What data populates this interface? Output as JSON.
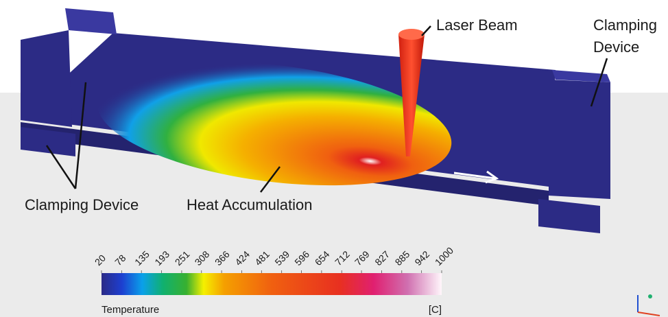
{
  "labels": {
    "laser_beam": "Laser Beam",
    "clamping_right_line1": "Clamping",
    "clamping_right_line2": "Device",
    "clamping_left": "Clamping Device",
    "heat_accumulation": "Heat Accumulation"
  },
  "legend": {
    "title": "Temperature",
    "unit": "[C]",
    "ticks": [
      20,
      78,
      135,
      193,
      251,
      308,
      366,
      424,
      481,
      539,
      596,
      654,
      712,
      769,
      827,
      885,
      942,
      1000
    ]
  }
}
